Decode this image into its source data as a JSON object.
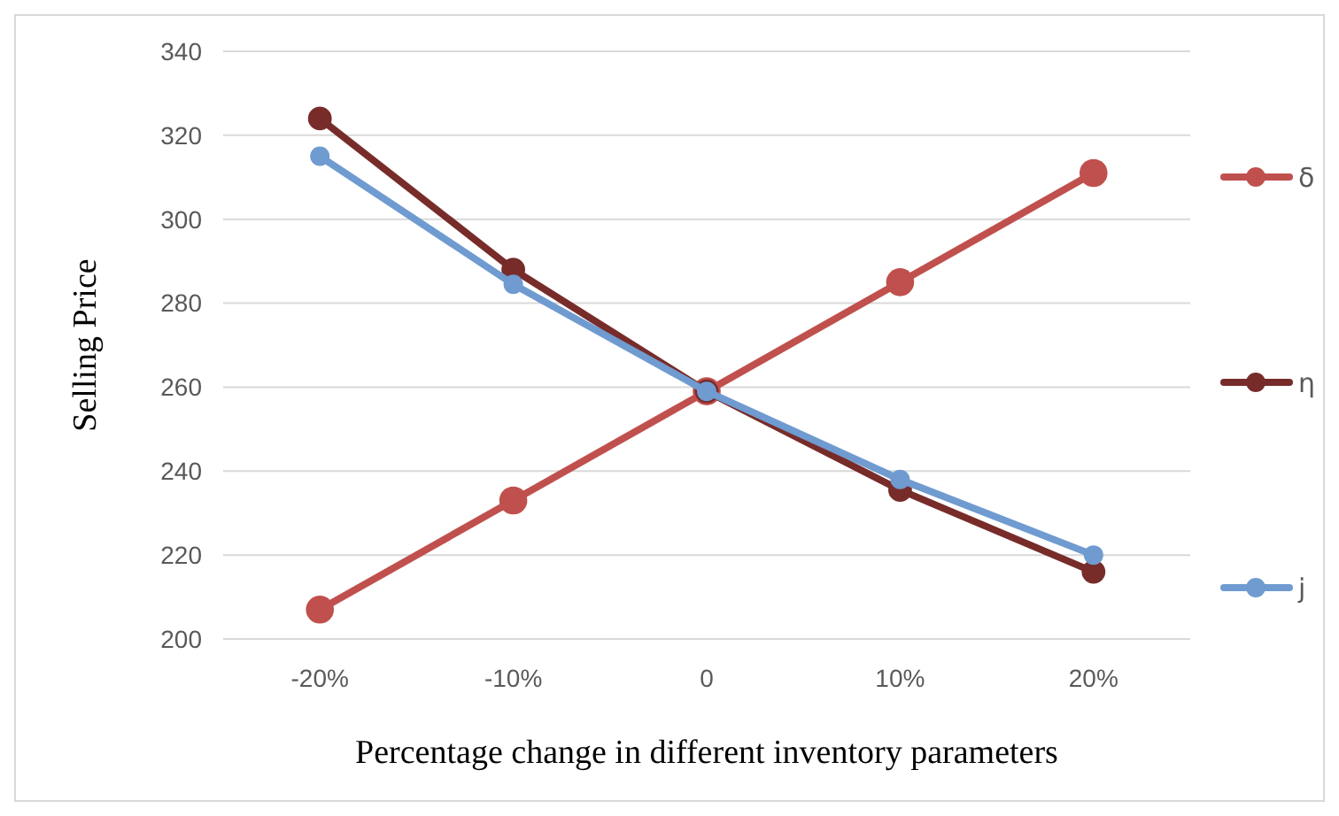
{
  "chart_data": {
    "type": "line",
    "xlabel": "Percentage change in different inventory parameters",
    "ylabel": "Selling Price",
    "categories": [
      "-20%",
      "-10%",
      "0",
      "10%",
      "20%"
    ],
    "series": [
      {
        "name": "δ",
        "color": "#c0504d",
        "values": [
          207,
          233,
          259,
          285,
          311
        ]
      },
      {
        "name": "η",
        "color": "#772c2a",
        "values": [
          324,
          288,
          259,
          235.5,
          216
        ]
      },
      {
        "name": "j",
        "color": "#6f9bd0",
        "values": [
          315,
          284.5,
          259,
          238,
          220
        ]
      }
    ],
    "ylim": [
      200,
      340
    ],
    "yticks": [
      200,
      220,
      240,
      260,
      280,
      300,
      320,
      340
    ],
    "grid": "y",
    "legend": "right",
    "marker": "circle",
    "line_style": "solid"
  }
}
